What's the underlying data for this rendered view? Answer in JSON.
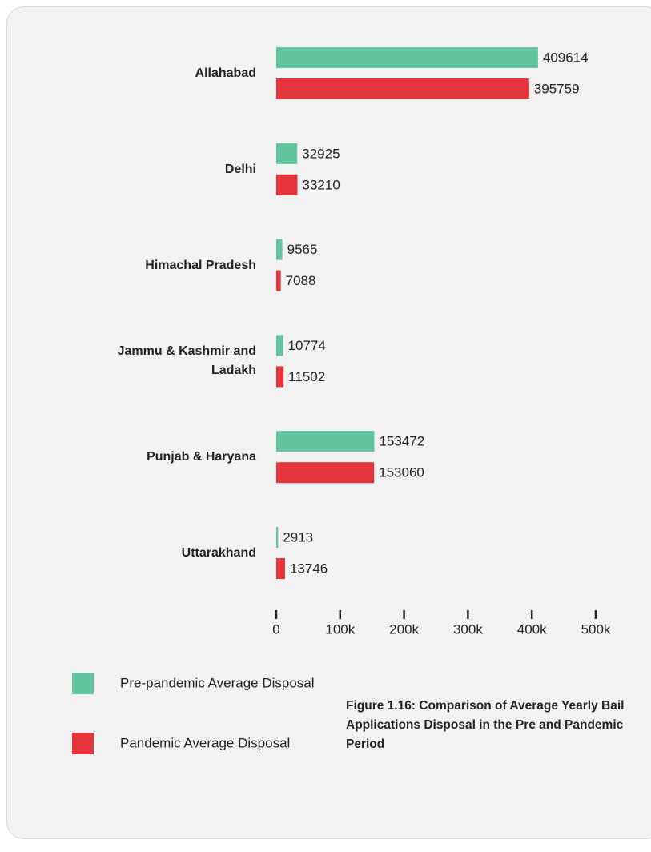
{
  "chart_data": {
    "type": "bar",
    "orientation": "horizontal",
    "title": "Figure 1.16: Comparison of Average Yearly Bail Applications Disposal in the Pre and Pandemic Period",
    "categories": [
      "Allahabad",
      "Delhi",
      "Himachal Pradesh",
      "Jammu & Kashmir and Ladakh",
      "Punjab & Haryana",
      "Uttarakhand"
    ],
    "series": [
      {
        "name": "Pre-pandemic Average Disposal",
        "color": "#63c5a0",
        "values": [
          409614,
          32925,
          9565,
          10774,
          153472,
          2913
        ]
      },
      {
        "name": "Pandemic Average Disposal",
        "color": "#e5343b",
        "values": [
          395759,
          33210,
          7088,
          11502,
          153060,
          13746
        ]
      }
    ],
    "xlim": [
      0,
      500000
    ],
    "xticks": [
      0,
      {
        "value": 100000,
        "label": "100k"
      },
      {
        "value": 200000,
        "label": "200k"
      },
      {
        "value": 300000,
        "label": "300k"
      },
      {
        "value": 400000,
        "label": "400k"
      },
      {
        "value": 500000,
        "label": "500k"
      }
    ],
    "legend": "bottom-left"
  }
}
